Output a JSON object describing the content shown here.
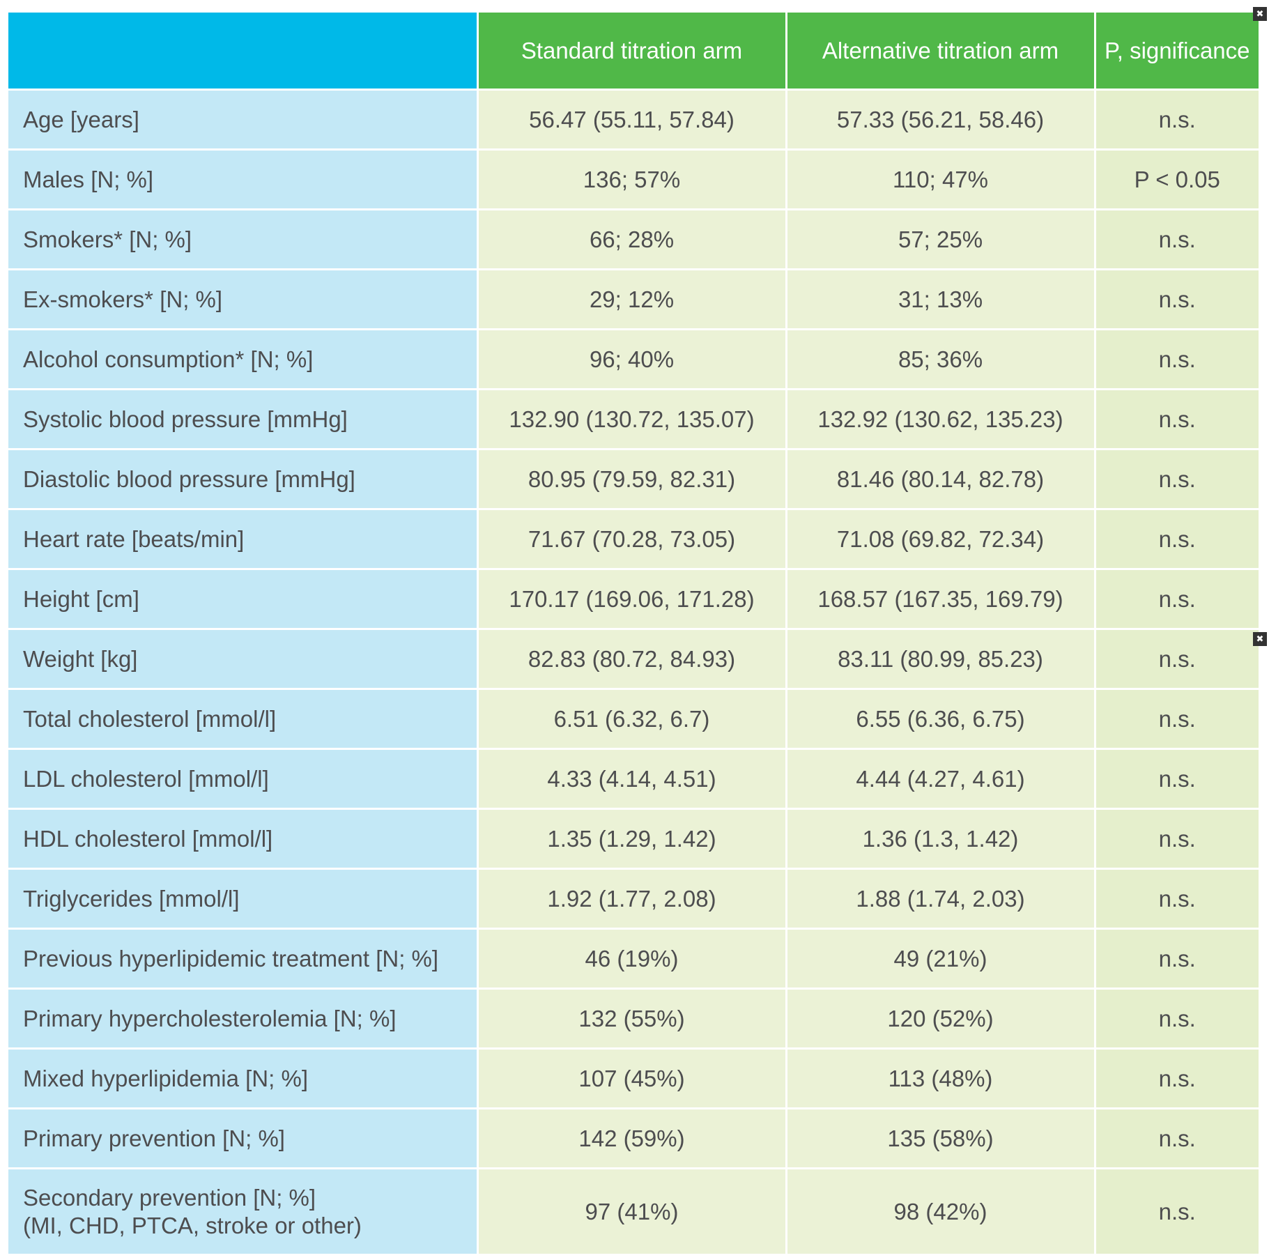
{
  "table": {
    "headers": [
      "",
      "Standard titration arm",
      "Alternative titration arm",
      "P, significance"
    ],
    "rows": [
      {
        "label": "Age [years]",
        "standard": "56.47 (55.11, 57.84)",
        "alternative": "57.33 (56.21, 58.46)",
        "p": "n.s."
      },
      {
        "label": "Males [N; %]",
        "standard": "136; 57%",
        "alternative": "110; 47%",
        "p": "P < 0.05"
      },
      {
        "label": "Smokers* [N; %]",
        "standard": "66; 28%",
        "alternative": "57; 25%",
        "p": "n.s."
      },
      {
        "label": "Ex-smokers* [N; %]",
        "standard": "29; 12%",
        "alternative": "31; 13%",
        "p": "n.s."
      },
      {
        "label": "Alcohol consumption* [N; %]",
        "standard": "96; 40%",
        "alternative": "85; 36%",
        "p": "n.s."
      },
      {
        "label": "Systolic blood pressure [mmHg]",
        "standard": "132.90 (130.72, 135.07)",
        "alternative": "132.92 (130.62, 135.23)",
        "p": "n.s."
      },
      {
        "label": "Diastolic blood pressure [mmHg]",
        "standard": "80.95 (79.59, 82.31)",
        "alternative": "81.46 (80.14, 82.78)",
        "p": "n.s."
      },
      {
        "label": "Heart rate [beats/min]",
        "standard": "71.67 (70.28, 73.05)",
        "alternative": "71.08 (69.82, 72.34)",
        "p": "n.s."
      },
      {
        "label": "Height [cm]",
        "standard": "170.17 (169.06, 171.28)",
        "alternative": "168.57 (167.35, 169.79)",
        "p": "n.s."
      },
      {
        "label": "Weight [kg]",
        "standard": "82.83 (80.72, 84.93)",
        "alternative": "83.11 (80.99, 85.23)",
        "p": "n.s."
      },
      {
        "label": "Total cholesterol [mmol/l]",
        "standard": "6.51 (6.32, 6.7)",
        "alternative": "6.55 (6.36, 6.75)",
        "p": "n.s."
      },
      {
        "label": "LDL cholesterol [mmol/l]",
        "standard": "4.33 (4.14, 4.51)",
        "alternative": "4.44 (4.27, 4.61)",
        "p": "n.s."
      },
      {
        "label": "HDL cholesterol [mmol/l]",
        "standard": "1.35 (1.29, 1.42)",
        "alternative": "1.36 (1.3, 1.42)",
        "p": "n.s."
      },
      {
        "label": "Triglycerides [mmol/l]",
        "standard": "1.92 (1.77, 2.08)",
        "alternative": "1.88 (1.74, 2.03)",
        "p": "n.s."
      },
      {
        "label": "Previous hyperlipidemic treatment [N; %]",
        "standard": "46 (19%)",
        "alternative": "49 (21%)",
        "p": "n.s."
      },
      {
        "label": "Primary hypercholesterolemia [N; %]",
        "standard": "132 (55%)",
        "alternative": "120 (52%)",
        "p": "n.s."
      },
      {
        "label": "Mixed hyperlipidemia [N; %]",
        "standard": "107 (45%)",
        "alternative": "113 (48%)",
        "p": "n.s."
      },
      {
        "label": "Primary prevention [N; %]",
        "standard": "142 (59%)",
        "alternative": "135 (58%)",
        "p": "n.s."
      }
    ],
    "last_row": {
      "label_line1": "Secondary prevention [N; %]",
      "label_line2": "(MI, CHD, PTCA, stroke or other)",
      "standard": "97 (41%)",
      "alternative": "98 (42%)",
      "p": "n.s."
    }
  },
  "icons": [
    "collapse-icon",
    "collapse-icon"
  ],
  "colors": {
    "header_corner": "#00b9e8",
    "header_green": "#50b848",
    "label_cell": "#c3e8f6",
    "value_cell": "#ebf2d6",
    "text": "#4d4d4f"
  }
}
